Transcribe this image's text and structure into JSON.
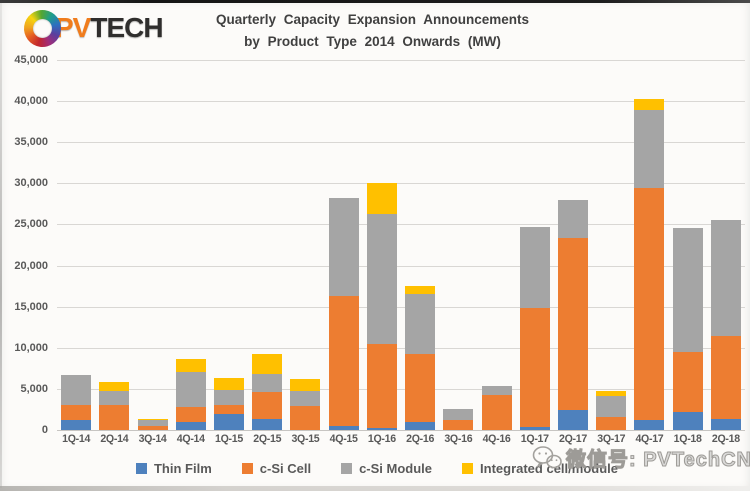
{
  "logo": {
    "pv": "PV",
    "tech": "TECH"
  },
  "title": {
    "line1": "Quarterly Capacity Expansion Announcements",
    "line2": "by Product Type 2014 Onwards (MW)"
  },
  "watermark": {
    "text": "微信号: PVTechCN",
    "icon": "wechat-icon"
  },
  "chart_data": {
    "type": "bar",
    "stacked": true,
    "title": "Quarterly Capacity Expansion Announcements by Product Type 2014 Onwards (MW)",
    "xlabel": "",
    "ylabel": "",
    "ylim": [
      0,
      45000
    ],
    "ytick_interval": 5000,
    "ytick_labels": [
      "45,000",
      "40,000",
      "35,000",
      "30,000",
      "25,000",
      "20,000",
      "15,000",
      "10,000",
      "5,000",
      "0"
    ],
    "grid": true,
    "legend_position": "bottom",
    "categories": [
      "1Q-14",
      "2Q-14",
      "3Q-14",
      "4Q-14",
      "1Q-15",
      "2Q-15",
      "3Q-15",
      "4Q-15",
      "1Q-16",
      "2Q-16",
      "3Q-16",
      "4Q-16",
      "1Q-17",
      "2Q-17",
      "3Q-17",
      "4Q-17",
      "1Q-18",
      "2Q-18"
    ],
    "series": [
      {
        "name": "Thin Film",
        "color": "#4E81BD",
        "values": [
          1200,
          0,
          0,
          1000,
          2000,
          1300,
          0,
          500,
          300,
          1000,
          0,
          0,
          400,
          2400,
          0,
          1200,
          2200,
          1300
        ]
      },
      {
        "name": "c-Si Cell",
        "color": "#ED7D31",
        "values": [
          1800,
          3000,
          500,
          1800,
          1000,
          3300,
          2900,
          15800,
          10200,
          8300,
          1200,
          4200,
          14400,
          21000,
          1600,
          28200,
          7300,
          10100
        ]
      },
      {
        "name": "c-Si Module",
        "color": "#A5A5A5",
        "values": [
          3700,
          1800,
          700,
          4300,
          1900,
          2200,
          1800,
          11900,
          15800,
          7200,
          1400,
          1100,
          9900,
          4600,
          2500,
          9500,
          15100,
          14100
        ]
      },
      {
        "name": "Integrated cell/module",
        "color": "#FFC000",
        "values": [
          0,
          1000,
          200,
          1500,
          1400,
          2400,
          1500,
          0,
          3700,
          1000,
          0,
          0,
          0,
          0,
          600,
          1300,
          0,
          0
        ]
      }
    ],
    "totals": [
      6700,
      5800,
      1400,
      8600,
      6300,
      9200,
      6200,
      28200,
      30000,
      17500,
      2600,
      5300,
      24700,
      28000,
      4700,
      40200,
      24600,
      25500
    ]
  }
}
